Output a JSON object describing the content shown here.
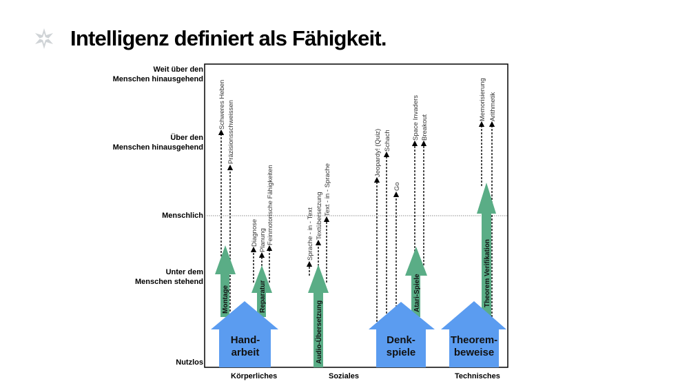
{
  "title": "Intelligenz definiert als Fähigkeit.",
  "y_levels": [
    {
      "label_line1": "Weit über den",
      "label_line2": "Menschen hinausgehend"
    },
    {
      "label_line1": "Über den",
      "label_line2": "Menschen hinausgehend"
    },
    {
      "label_line1": "",
      "label_line2": "Menschlich"
    },
    {
      "label_line1": "Unter dem",
      "label_line2": "Menschen stehend"
    },
    {
      "label_line1": "",
      "label_line2": "Nutzlos"
    }
  ],
  "x_categories": [
    "Körperliches",
    "Soziales",
    "Technisches"
  ],
  "houses": [
    {
      "line1": "Hand-",
      "line2": "arbeit"
    },
    {
      "line1": "Denk-",
      "line2": "spiele"
    },
    {
      "line1": "Theorem-",
      "line2": "beweise"
    }
  ],
  "green_arrows": [
    "Montage",
    "Reparatur",
    "Audio-Übersetzung",
    "Atari-Spiele",
    "Theorem Verifikation"
  ],
  "task_labels": [
    "Schweres Heben",
    "Präzisionsschweissen",
    "Diagnose",
    "Planung",
    "Feinmotorische Fähigkeiten",
    "Sprache - in - Text",
    "Textübersetzung",
    "Text - in - Sprache",
    "Jeopardy! (Quiz)",
    "Schach",
    "Go",
    "Space Invaders",
    "Breakout",
    "Memorisierung",
    "Arithmetik"
  ],
  "colors": {
    "green": "#5aad86",
    "blue": "#5b9cf0",
    "logo": "#cfd3d6"
  }
}
